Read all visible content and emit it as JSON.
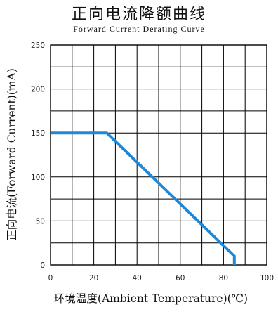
{
  "chart_data": {
    "type": "line",
    "title": "正向电流降额曲线",
    "subtitle": "Forward Current Derating Curve",
    "xlabel": "环境温度(Ambient Temperature)(℃)",
    "ylabel": "正向电流(Forward Current)(mA)",
    "xlim": [
      0,
      100
    ],
    "ylim": [
      0,
      250
    ],
    "xticks": [
      0,
      20,
      40,
      60,
      80,
      100
    ],
    "yticks": [
      0,
      50,
      100,
      150,
      200,
      250
    ],
    "grid": true,
    "line_color": "#1e88d8",
    "series": [
      {
        "x": [
          0,
          26,
          85,
          85
        ],
        "y": [
          150,
          150,
          10,
          0
        ]
      }
    ]
  }
}
